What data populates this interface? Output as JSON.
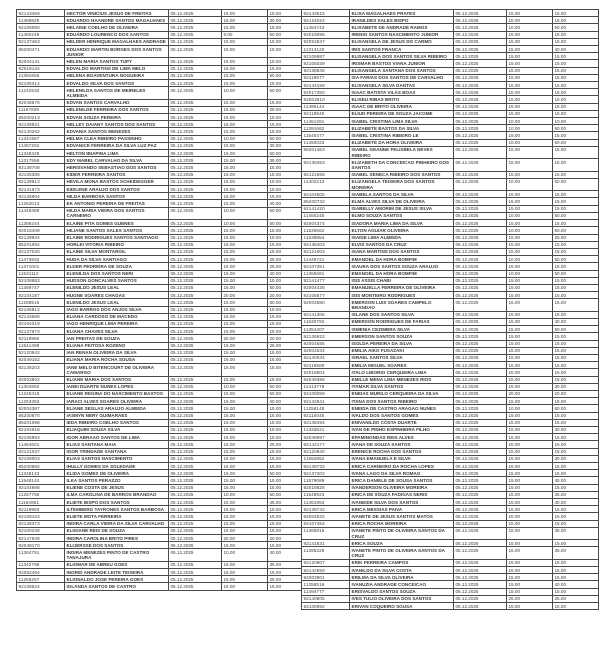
{
  "colors": {
    "paper": "#ffffff",
    "ink": "#3b3b3f",
    "border": "#4a4a4a"
  },
  "table_columns": [
    "registration_id",
    "name",
    "date",
    "value_1",
    "value_2"
  ],
  "shared_date": "05.12.2025",
  "tables": {
    "left": {
      "rows": [
        [
          "92123459",
          "HECTOR VINICIUS JESUS DE FREITAS",
          "15.00",
          "15.00"
        ],
        [
          "11369825",
          "EDUARDO HAANDRE SANTOS MAGALHAES",
          "15.00",
          "30.00"
        ],
        [
          "92106080",
          "HELAINE COELHO DE OLIVEIRA",
          "15.00",
          "15.00"
        ],
        [
          "11450246",
          "EDUARDO LOURENCO DOS SANTOS",
          "5.00",
          "50.00"
        ],
        [
          "92137463",
          "HELDER HENRIQUE MAGALHAES ANDRADE",
          "15.00",
          "15.00"
        ],
        [
          "85200471",
          "EDUARDO MARTIN BORGES DOS SANTOS JUNIOR",
          "15.00",
          "15.00"
        ],
        [
          "92004141",
          "HELEN MARIA SANTOS TUPY",
          "15.00",
          "15.00"
        ],
        [
          "92018134",
          "EDVALDO MARTINS DE LIMA MELO",
          "15.00",
          "15.00"
        ],
        [
          "11391656",
          "HELENA BOAVENTURA NOGUEIRA",
          "15.00",
          "50.00"
        ],
        [
          "92105314",
          "EDVALDO SILVA DOS SANTOS",
          "15.00",
          "15.00"
        ],
        [
          "11242532",
          "HELENILDA SANTOS DE MEIRELES ALMEIDA",
          "10.00",
          "50.00"
        ],
        [
          "92048575",
          "EDVAN SANTOS CARVALHO",
          "15.00",
          "15.00"
        ],
        [
          "11157839",
          "HELENILDE FERREIRA DOS SANTOS",
          "15.00",
          "25.00"
        ],
        [
          "85200213",
          "EDVAN SOUZA PEREIRA",
          "15.00",
          "15.00"
        ],
        [
          "92139931",
          "HELLEY DAIANY SANTOS DOS SANTOS",
          "15.00",
          "15.00"
        ],
        [
          "92140262",
          "EDVANIA SANTOS MENEZES",
          "15.00",
          "15.00"
        ],
        [
          "11341957",
          "HELMA CLEA RIBEIRO PASSINHO",
          "10.00",
          "50.00"
        ],
        [
          "11457262",
          "EDVANICE FERREIRA DA SILVA LUZ PAZ",
          "15.00",
          "30.00"
        ],
        [
          "11348328",
          "HELTON IBIAPINA LIMA",
          "15.00",
          "50.00"
        ],
        [
          "11317556",
          "EDY MABEL CARVALHO DA SILVA",
          "15.00",
          "35.00"
        ],
        [
          "92138708",
          "HERISVANDO SEBASTIAO DOS SANTOS",
          "15.00",
          "15.00"
        ],
        [
          "92105386",
          "EIDER FERREIRA SANTOS",
          "15.00",
          "15.00"
        ],
        [
          "92139913",
          "HEVILA MONA BASTOS SCHEIDEGGER",
          "15.00",
          "15.00"
        ],
        [
          "92141673",
          "EIDILENE ARAUJO DOS SANTOS",
          "15.00",
          "15.00"
        ],
        [
          "92136904",
          "HILDA BARBOSA SANTOS",
          "15.00",
          "15.00"
        ],
        [
          "11252013",
          "EK ANTONIO PEREIRA DE FREITAS",
          "15.00",
          "40.00"
        ],
        [
          "11449489",
          "HILDA MARIA VIEIRA DOS SANTOS CARNEIRO",
          "10.00",
          "50.00"
        ],
        [
          "11359244",
          "ELAINE PITA GOMES GUENES",
          "10.00",
          "50.00"
        ],
        [
          "92016408",
          "HILIANE SANTOS SALES SANTOS",
          "15.00",
          "15.00"
        ],
        [
          "92139934",
          "ELAINE RODRIGUES SANTOS SANTIAGO",
          "15.00",
          "15.00"
        ],
        [
          "85201092",
          "HORLEI VITORIA RIBEIRO",
          "15.00",
          "15.00"
        ],
        [
          "92137030",
          "ELAINE SILVA MONTARGIL",
          "15.00",
          "15.00"
        ],
        [
          "11473932",
          "HUDA DA SILVA SANTIAGO",
          "15.00",
          "25.00"
        ],
        [
          "11371001",
          "ELDER PEDREIRA DE SOUZA",
          "15.00",
          "25.00"
        ],
        [
          "11531112",
          "ELENILDA DOS SANTOS NERI",
          "15.00",
          "40.00"
        ],
        [
          "92108683",
          "HUDSON GONCALVES SANTOS",
          "15.00",
          "15.00"
        ],
        [
          "11369747",
          "ELENILDO JESUS LEAL",
          "15.00",
          "50.00"
        ],
        [
          "92104187",
          "HUGNE SOARES CHAGAS",
          "20.00",
          "20.00"
        ],
        [
          "11258515",
          "ELENILDO JESUS LEAL",
          "15.00",
          "50.00"
        ],
        [
          "92106812",
          "IAGO BARROS DOS ANJOS SILVA",
          "15.00",
          "15.00"
        ],
        [
          "92143588",
          "ELIANA CARDOSO DE MACEDO",
          "15.00",
          "15.00"
        ],
        [
          "92104319",
          "IAGO HENRIQUE LIMA PEREIRA",
          "15.00",
          "15.00"
        ],
        [
          "92137673",
          "ELIANA CHAVES SILVA",
          "15.00",
          "15.00"
        ],
        [
          "92119980",
          "IAN FREITAS DE SOUZA",
          "20.00",
          "20.00"
        ],
        [
          "11541499",
          "ELIANA FEITOSA ROZENO",
          "15.00",
          "25.00"
        ],
        [
          "92120942",
          "IAN RENAN OLIVEIRA DA SILVA",
          "15.00",
          "15.00"
        ],
        [
          "92049152",
          "ELIANA MARIA ROCHA SOUSA",
          "15.00",
          "15.00"
        ],
        [
          "92138203",
          "IANE MELO BITENCOURT DE OLIVEIRA CAMARGO",
          "15.00",
          "15.00"
        ],
        [
          "92003802",
          "ELIANE MARIA DOS SANTOS",
          "15.00",
          "15.00"
        ],
        [
          "11304852",
          "IANEI DUARTE NUNES LOPES",
          "10.00",
          "50.00"
        ],
        [
          "11245319",
          "ELIANE REGINA DO NASCIMENTO BASTOS",
          "15.00",
          "50.00"
        ],
        [
          "11253353",
          "IARACI ALVES SOARES OLIVEIRA",
          "15.00",
          "40.00"
        ],
        [
          "92004387",
          "ELIANE SEGLAS ARAUJO ALMEIDA",
          "15.00",
          "15.00"
        ],
        [
          "85200870",
          "IASMYN NERY GUIMARAES",
          "15.00",
          "15.00"
        ],
        [
          "85201098",
          "IEDA RIBEIRO COELHO SANTOS",
          "15.00",
          "15.00"
        ],
        [
          "92104618",
          "ELIAQUIM SOUZA SILVA",
          "15.00",
          "15.00"
        ],
        [
          "92105993",
          "IGOR ABRAAO SANTOS DE LIMA",
          "15.00",
          "15.00"
        ],
        [
          "11454601",
          "ELIAS SANTANA MAIA",
          "15.00",
          "25.00"
        ],
        [
          "92121037",
          "IGOR TRINDADE SANTANA",
          "15.00",
          "15.00"
        ],
        [
          "92106003",
          "ELIAS SANTOS NASCIMENTO",
          "15.00",
          "15.00"
        ],
        [
          "85200582",
          "IHULLY GOMES DA SOLEDADE",
          "15.00",
          "15.00"
        ],
        [
          "11348143",
          "ELIDA GOMES DE OLIVEIRA",
          "15.00",
          "50.00"
        ],
        [
          "11548144",
          "ILKA SANTOS PERAZZO",
          "15.00",
          "15.00"
        ],
        [
          "92104698",
          "ELIENE COSTA DE JESUS",
          "15.00",
          "15.00"
        ],
        [
          "11257756",
          "ILMA CAROLINA DE BARROS BRANDAO",
          "10.00",
          "50.00"
        ],
        [
          "11164951",
          "ELIETE BISPO DOS SANTOS",
          "15.00",
          "45.00"
        ],
        [
          "92119993",
          "ILTEMBERG TAYRONES SANTOS BARBOSA",
          "15.00",
          "15.00"
        ],
        [
          "92108163",
          "ELIETE MOTA FERREIRA",
          "15.00",
          "15.00"
        ],
        [
          "92138373",
          "INDIRA CARLA VIEIRA DA SILVA CARVALHO",
          "15.00",
          "15.00"
        ],
        [
          "92100238",
          "ELIGIANE REIS DE SOUZA",
          "15.00",
          "15.00"
        ],
        [
          "92147949",
          "INDIRA CAROLINA BRITO PIRES",
          "20.00",
          "20.00"
        ],
        [
          "92049170",
          "ELIJERSSE DOS SANTOS",
          "15.00",
          "15.00"
        ],
        [
          "11364791",
          "INDIRA MENEZES PINTO DE CASTRO TANAJURA",
          "10.00",
          "40.00"
        ],
        [
          "11342798",
          "ELIOMAR DE ABREU GOES",
          "15.00",
          "35.00"
        ],
        [
          "92052494",
          "INGRID ANDRADE LEITE TEIXEIRA",
          "15.00",
          "15.00"
        ],
        [
          "11256257",
          "ELIONALDO JOSE PEREIRA GOES",
          "15.00",
          "25.00"
        ],
        [
          "92139524",
          "IOLANDA SANTOS DE CASTRO",
          "15.00",
          "15.00"
        ]
      ]
    },
    "right": {
      "rows": [
        [
          "92143515",
          "ELISA MAGALHAES PRATES",
          "15.00",
          "15.00"
        ],
        [
          "92124024",
          "IRANILDES SALES BISPO",
          "15.00",
          "15.00"
        ],
        [
          "11454743",
          "ELISABETE DE ANDRADE RAMOS",
          "10.00",
          "50.00"
        ],
        [
          "92018095",
          "IRENIO SANTOS NASCIMENTO JUNIOR",
          "15.00",
          "15.00"
        ],
        [
          "92052537",
          "ELISANGELA DE JESUS DO CARMO",
          "15.00",
          "15.00"
        ],
        [
          "11314120",
          "IRIS SANTOS FRANCA",
          "15.00",
          "40.00"
        ],
        [
          "92106987",
          "ELISANGELA DOS SANTOS SILVA RIBEIRO",
          "15.00",
          "15.00"
        ],
        [
          "92105039",
          "IRISMAR BASTOS VIANA JUNIOR",
          "15.00",
          "15.00"
        ],
        [
          "92138846",
          "ELISANGELA SANTANA DOS SANTOS",
          "15.00",
          "15.00"
        ],
        [
          "92119577",
          "ISA FARIAS DOS SANTOS DE CARVALHO",
          "15.00",
          "15.00"
        ],
        [
          "92144158",
          "ELISANGELA SILVA DANTAS",
          "15.00",
          "15.00"
        ],
        [
          "92017380",
          "ISAAC BATISTA VILAS BOAS",
          "15.00",
          "15.00"
        ],
        [
          "92003910",
          "ELISEU RIBAS BRITO",
          "15.00",
          "15.00"
        ],
        [
          "11495144",
          "ISAAC DE BRITO OLIVEIRA",
          "15.00",
          "15.00"
        ],
        [
          "92118940",
          "ELIUD PEREIRA DE SOUZA JACOME",
          "15.00",
          "15.00"
        ],
        [
          "11451281",
          "ISABEL CRISTINA LIMA SILVA",
          "10.00",
          "10.00"
        ],
        [
          "11391662",
          "ELIZABETE BASTOS DA SILVA",
          "10.00",
          "50.00"
        ],
        [
          "11540477",
          "ISABEL CRISTINA RIBEIRO LE",
          "15.00",
          "15.00"
        ],
        [
          "11450023",
          "ELIZABETE DA HORA OLIVEIRA",
          "10.00",
          "50.00"
        ],
        [
          "85201463",
          "ISABEL GEANNE FELISBELA NEVES RIBEIRO",
          "15.00",
          "15.00"
        ],
        [
          "92138453",
          "ELIZABETH DA CONCEICAO PINHEIRO DOS SANTOS",
          "15.00",
          "15.00"
        ],
        [
          "92121656",
          "ISABEL SENECA RIBEIRO DOS SANTOS",
          "15.00",
          "15.00"
        ],
        [
          "11402213",
          "ELIZANGELA TEIXEIRA DOS SANTOS MOREIRA",
          "10.00",
          "50.00"
        ],
        [
          "92104505",
          "ISABELA SANTOS DA SILVA",
          "15.00",
          "15.00"
        ],
        [
          "85200732",
          "ELMA ALVES SILVA DE OLIVEIRA",
          "15.00",
          "15.00"
        ],
        [
          "92141420",
          "ISABELLY AMORIM DE JESUS SILVA",
          "15.00",
          "15.00"
        ],
        [
          "11450245",
          "ELMO SOUZA SANTOS",
          "10.00",
          "50.00"
        ],
        [
          "92004374",
          "ISADORA MARIA LIMA DA SILVA",
          "15.00",
          "15.00"
        ],
        [
          "11530662",
          "ELTON AGUIAR OLIVEIRA",
          "10.00",
          "50.00"
        ],
        [
          "11539854",
          "ISAIDE LIMA ALMEIDA",
          "15.00",
          "25.00"
        ],
        [
          "92138403",
          "ELVIS SANTOS DA CRUZ",
          "15.00",
          "15.00"
        ],
        [
          "92121003",
          "ISANA MARTINS DOS SANTOS",
          "15.00",
          "15.00"
        ],
        [
          "11449721",
          "EMANOEL DA HORA BOMFIM",
          "10.00",
          "50.00"
        ],
        [
          "92107351",
          "ISAURA DOS SANTOS SOUZA ARAUJO",
          "15.00",
          "15.00"
        ],
        [
          "11365681",
          "EMANOEL DA HORA BOMFIM",
          "10.00",
          "50.00"
        ],
        [
          "92141477",
          "ISIS ASSIS CHABI",
          "15.00",
          "15.00"
        ],
        [
          "92004436",
          "EMANUELLA FERREIRA DE OLIVEIRA",
          "15.00",
          "15.00"
        ],
        [
          "92105577",
          "ISIS MONTEIRO RODRIGUES",
          "15.00",
          "15.00"
        ],
        [
          "92004580",
          "EMERSON LUIS SOARES CAMPELO BRANDAO",
          "15.00",
          "15.00"
        ],
        [
          "92141306",
          "ISLANE DOS SANTOS SILVA",
          "15.00",
          "15.00"
        ],
        [
          "11530792",
          "EMERSON RODRIGUES DE FARIAS",
          "15.00",
          "40.00"
        ],
        [
          "11354407",
          "ISMENIA CEZIMBRA SILVA",
          "15.00",
          "50.00"
        ],
        [
          "92136922",
          "EMERSON SANTOS SOUZA",
          "15.00",
          "15.00"
        ],
        [
          "92004585",
          "ISOLDA PEREIRA DA SILVA",
          "15.00",
          "15.00"
        ],
        [
          "92004634",
          "EMILIA AIKO FUSAZAKI",
          "15.00",
          "15.00"
        ],
        [
          "92140034",
          "ISRAEL SANTOS SILVA",
          "15.00",
          "15.00"
        ],
        [
          "92118680",
          "EMILIA MIGUEL SOARES",
          "15.00",
          "15.00"
        ],
        [
          "92018804",
          "ITALO LIBORIO CERQUEIRA LIMA",
          "15.00",
          "15.00"
        ],
        [
          "92049398",
          "EMILLE MENA LIMA MENEZES RIOS",
          "15.00",
          "15.00"
        ],
        [
          "11413779",
          "ITAMAR SILVA SANTOS",
          "15.00",
          "30.00"
        ],
        [
          "92106059",
          "ENEIAS MURILO CERQUEIRA DA SILVA",
          "20.00",
          "20.00"
        ],
        [
          "92142841",
          "ITANA DOS SANTOS RIBEIRO",
          "15.00",
          "15.00"
        ],
        [
          "11256148",
          "ENEIDA DE CASTRO ARAGAO NUNES",
          "10.00",
          "50.00"
        ],
        [
          "92110045",
          "IVALDO DOS SANTOS GOMES",
          "15.00",
          "15.00"
        ],
        [
          "92148494",
          "ENIVANILDO COSTA DUARTE",
          "15.00",
          "15.00"
        ],
        [
          "11333621",
          "IVAN DE PINHO ESPINHEIRA FILHO",
          "15.00",
          "30.00"
        ],
        [
          "92048997",
          "EPAMINONDAS REIS ALVES",
          "15.00",
          "15.00"
        ],
        [
          "92142177",
          "IVANA DE SOUZA SANTOS",
          "15.00",
          "15.00"
        ],
        [
          "92120940",
          "ERENICE ROCHA DOS SANTOS",
          "15.00",
          "15.00"
        ],
        [
          "11552852",
          "IVANA EMANUELA E SILVA",
          "15.00",
          "30.00"
        ],
        [
          "92139733",
          "ERICA CARNEIRO DA ROCHA LOPES",
          "15.00",
          "15.00"
        ],
        [
          "92137202",
          "IVANA LAGO DA SILVA ROMAO",
          "15.00",
          "15.00"
        ],
        [
          "11579089",
          "ERICA DANIELE DE SOUSA SANTOS",
          "15.00",
          "45.00"
        ],
        [
          "92018828",
          "IVANDERSON OLIVEIRA MOREIRA",
          "15.00",
          "15.00"
        ],
        [
          "11549923",
          "ERICA DE SOUZA FADIGAS NERIS",
          "15.00",
          "35.00"
        ],
        [
          "11461953",
          "IVANEIDE SILVA DOS SANTOS",
          "15.00",
          "40.00"
        ],
        [
          "92139742",
          "ERICA MESSIAS PAIVA",
          "15.00",
          "15.00"
        ],
        [
          "92004532",
          "IVANETE DE JESUS SANTOS MATOS",
          "15.00",
          "15.00"
        ],
        [
          "92107454",
          "ERICA ROCHA MOREIRA",
          "15.00",
          "15.00"
        ],
        [
          "11365816",
          "IVANETE PINTO DE OLIVEIRA SANTOS DA CRUZ",
          "15.00",
          "35.00"
        ],
        [
          "92141831",
          "ERICA SOUZA",
          "15.00",
          "15.00"
        ],
        [
          "11395329",
          "IVANETE PINTO DE OLIVEIRA SANTOS DA CRUZ",
          "15.00",
          "35.00"
        ],
        [
          "92120907",
          "ERIK FERREIRA CAMPOS",
          "15.00",
          "15.00"
        ],
        [
          "92142559",
          "IVANILDO DA SILVA COSTA",
          "15.00",
          "15.00"
        ],
        [
          "92003901",
          "ERILMA DA SILVA OLIVEIRA",
          "15.00",
          "15.00"
        ],
        [
          "11258516",
          "IVANUZIA ANDRADE CONCEICAO",
          "15.00",
          "40.00"
        ],
        [
          "11494777",
          "ERISVALDO SANTOS SOUZA",
          "15.00",
          "15.00"
        ],
        [
          "92140805",
          "IVES TULIO OLIVEIRA DOS SANTOS",
          "25.00",
          "25.00"
        ],
        [
          "92105982",
          "ERIVAN COQUEIRO SOUSA",
          "15.00",
          "15.00"
        ]
      ]
    }
  }
}
